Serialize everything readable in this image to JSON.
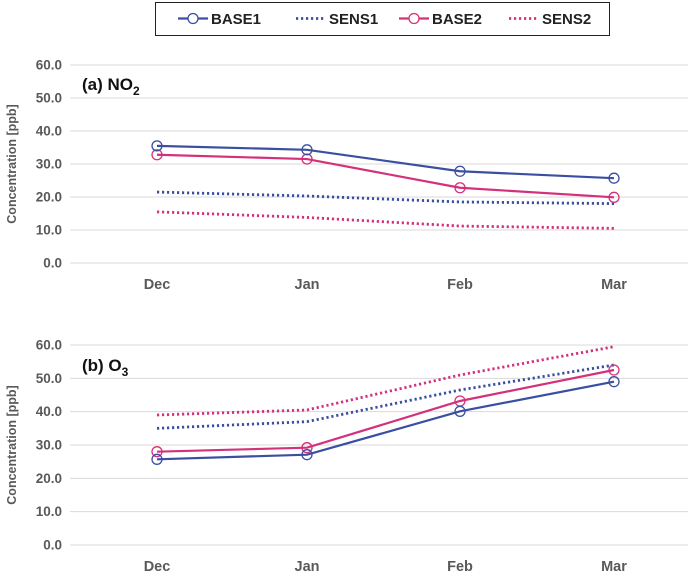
{
  "legend": [
    {
      "label": "BASE1",
      "color": "#3a4fa1",
      "style": "solid",
      "marker": "circle"
    },
    {
      "label": "SENS1",
      "color": "#3a4fa1",
      "style": "dotted",
      "marker": "none"
    },
    {
      "label": "BASE2",
      "color": "#d4317a",
      "style": "solid",
      "marker": "circle"
    },
    {
      "label": "SENS2",
      "color": "#d4317a",
      "style": "dotted",
      "marker": "none"
    }
  ],
  "chart_data": [
    {
      "type": "line",
      "title": "(a) NO",
      "title_sub": "2",
      "ylabel": "Concentration [ppb]",
      "categories": [
        "Dec",
        "Jan",
        "Feb",
        "Mar"
      ],
      "ylim": [
        0,
        60
      ],
      "yticks": [
        "0.0",
        "10.0",
        "20.0",
        "30.0",
        "40.0",
        "50.0",
        "60.0"
      ],
      "grid": "horizontal",
      "series": [
        {
          "name": "BASE1",
          "values": [
            35.5,
            34.3,
            27.8,
            25.7
          ]
        },
        {
          "name": "SENS1",
          "values": [
            21.5,
            20.3,
            18.5,
            18.0
          ]
        },
        {
          "name": "BASE2",
          "values": [
            32.8,
            31.5,
            22.8,
            19.9
          ]
        },
        {
          "name": "SENS2",
          "values": [
            15.5,
            13.8,
            11.2,
            10.5
          ]
        }
      ]
    },
    {
      "type": "line",
      "title": "(b) O",
      "title_sub": "3",
      "ylabel": "Concentration [ppb]",
      "categories": [
        "Dec",
        "Jan",
        "Feb",
        "Mar"
      ],
      "ylim": [
        0,
        60
      ],
      "yticks": [
        "0.0",
        "10.0",
        "20.0",
        "30.0",
        "40.0",
        "50.0",
        "60.0"
      ],
      "grid": "horizontal",
      "series": [
        {
          "name": "BASE1",
          "values": [
            25.7,
            27.1,
            40.1,
            49.0
          ]
        },
        {
          "name": "SENS1",
          "values": [
            35.0,
            37.0,
            46.5,
            54.0
          ]
        },
        {
          "name": "BASE2",
          "values": [
            28.0,
            29.2,
            43.2,
            52.5
          ]
        },
        {
          "name": "SENS2",
          "values": [
            39.0,
            40.5,
            51.0,
            59.5
          ]
        }
      ]
    }
  ]
}
